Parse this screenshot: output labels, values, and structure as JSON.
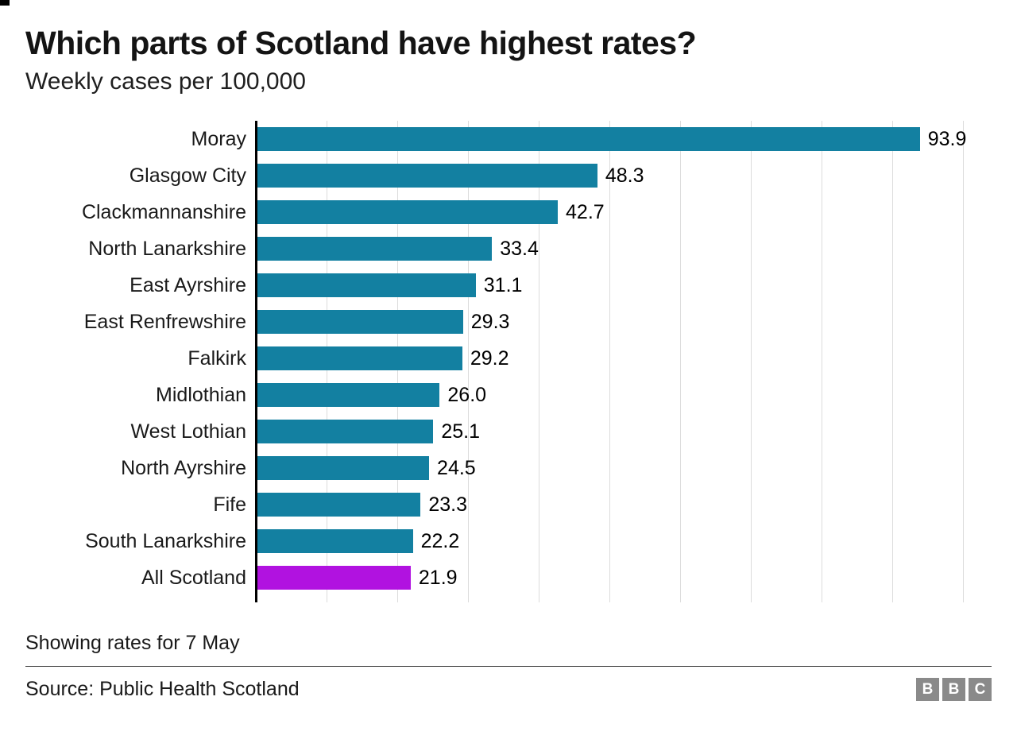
{
  "header": {
    "title": "Which parts of Scotland have highest rates?",
    "subtitle": "Weekly cases per 100,000"
  },
  "chart_data": {
    "type": "bar",
    "orientation": "horizontal",
    "title": "Which parts of Scotland have highest rates?",
    "subtitle": "Weekly cases per 100,000",
    "categories": [
      "Moray",
      "Glasgow City",
      "Clackmannanshire",
      "North Lanarkshire",
      "East Ayrshire",
      "East Renfrewshire",
      "Falkirk",
      "Midlothian",
      "West Lothian",
      "North Ayrshire",
      "Fife",
      "South Lanarkshire",
      "All Scotland"
    ],
    "values": [
      93.9,
      48.3,
      42.7,
      33.4,
      31.1,
      29.3,
      29.2,
      26.0,
      25.1,
      24.5,
      23.3,
      22.2,
      21.9
    ],
    "value_labels": [
      "93.9",
      "48.3",
      "42.7",
      "33.4",
      "31.1",
      "29.3",
      "29.2",
      "26.0",
      "25.1",
      "24.5",
      "23.3",
      "22.2",
      "21.9"
    ],
    "highlight_category": "All Scotland",
    "bar_color": "#1380A1",
    "highlight_color": "#B112E0",
    "xlim": [
      0,
      100
    ],
    "gridline_step": 10,
    "grid": true,
    "legend": "none",
    "xlabel": "",
    "ylabel": ""
  },
  "footer": {
    "note": "Showing rates for 7 May",
    "source": "Source: Public Health Scotland",
    "logo_letters": [
      "B",
      "B",
      "C"
    ]
  }
}
